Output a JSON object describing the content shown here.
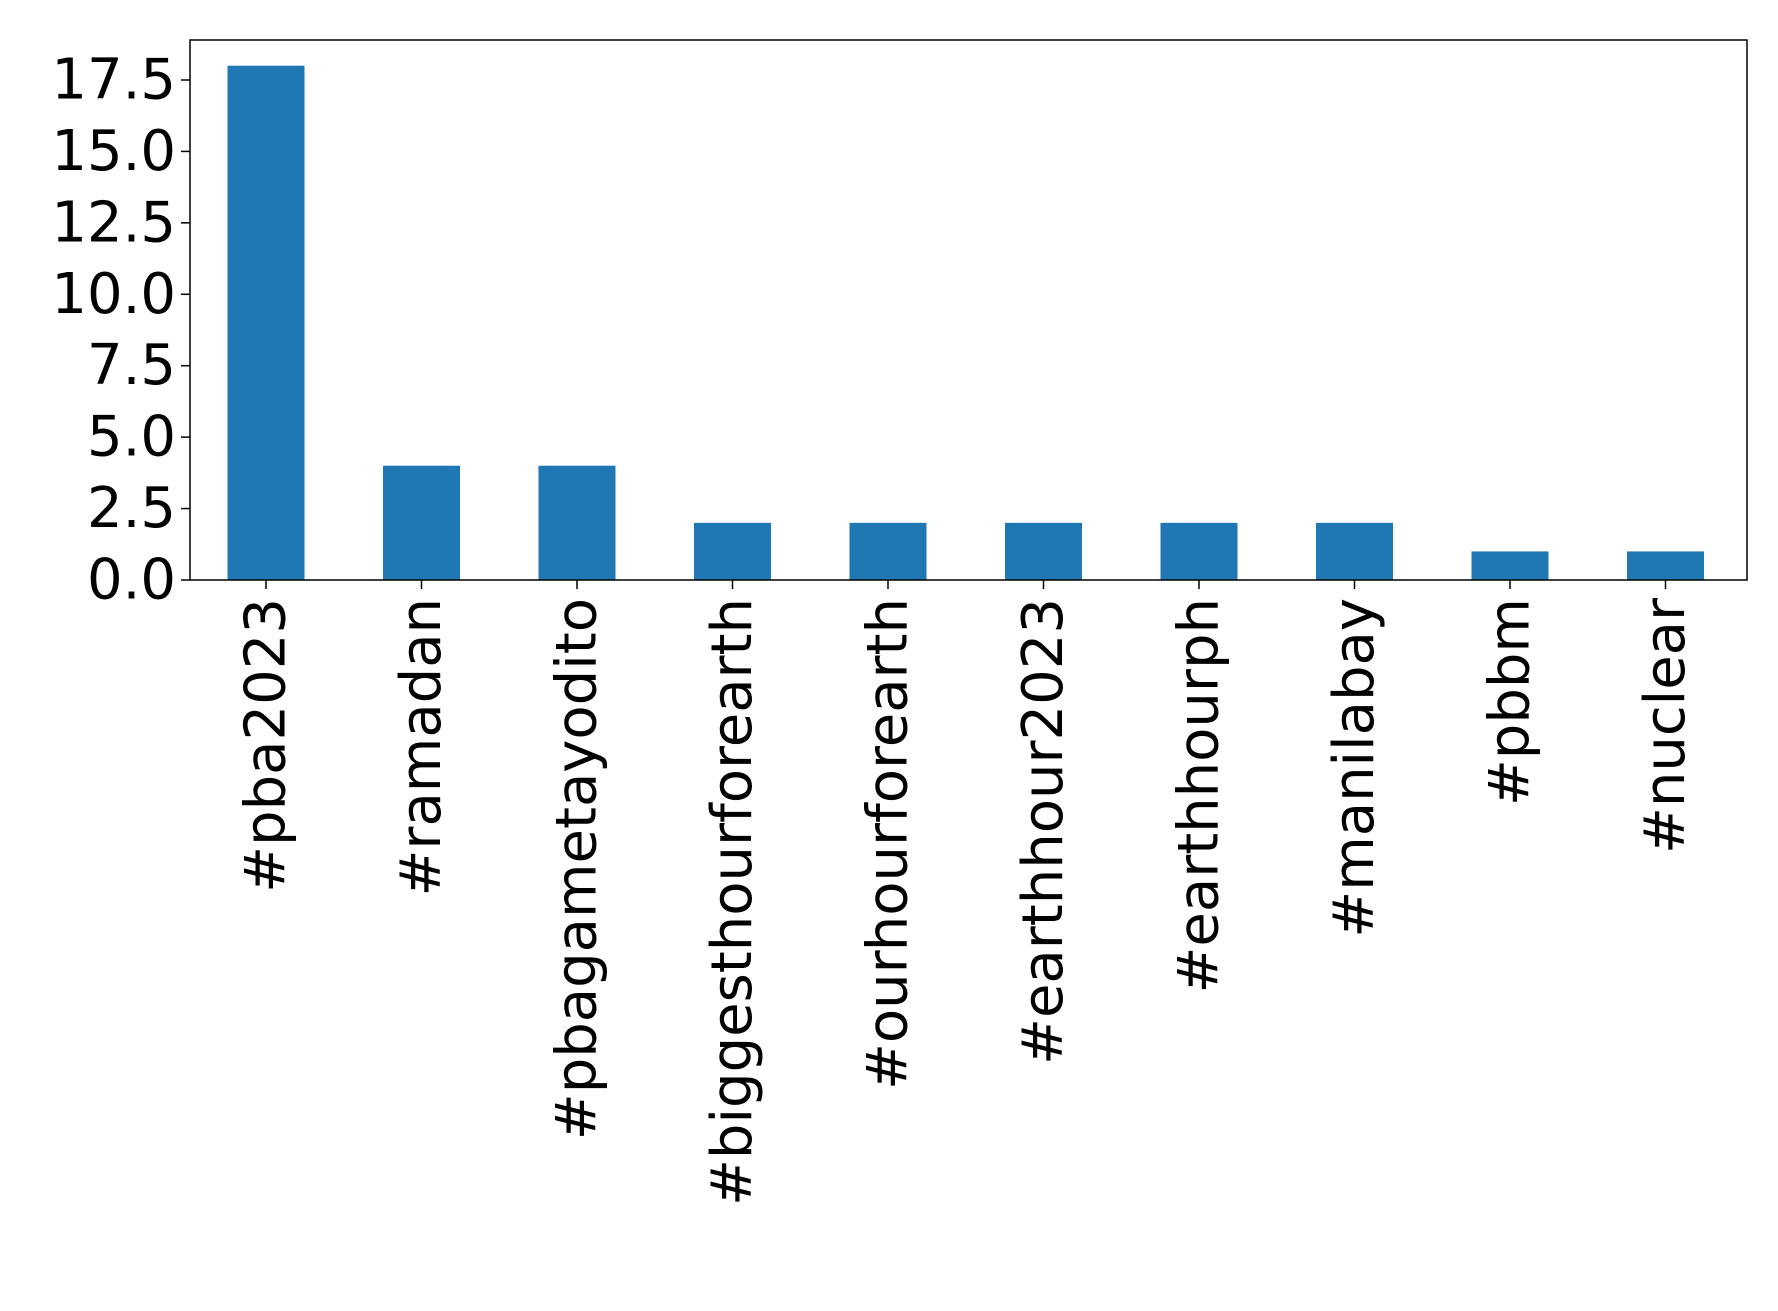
{
  "chart_data": {
    "type": "bar",
    "title": "",
    "xlabel": "",
    "ylabel": "",
    "categories": [
      "#pba2023",
      "#ramadan",
      "#pbagametayodito",
      "#biggesthourforearth",
      "#ourhourforearth",
      "#earthhour2023",
      "#earthhourph",
      "#manilabay",
      "#pbbm",
      "#nuclear"
    ],
    "values": [
      18,
      4,
      4,
      2,
      2,
      2,
      2,
      2,
      1,
      1
    ],
    "ylim": [
      0,
      18.9
    ],
    "yticks": [
      "0.0",
      "2.5",
      "5.0",
      "7.5",
      "10.0",
      "12.5",
      "15.0",
      "17.5"
    ],
    "grid": false,
    "legend": "none",
    "bar_color": "#1f77b4"
  }
}
